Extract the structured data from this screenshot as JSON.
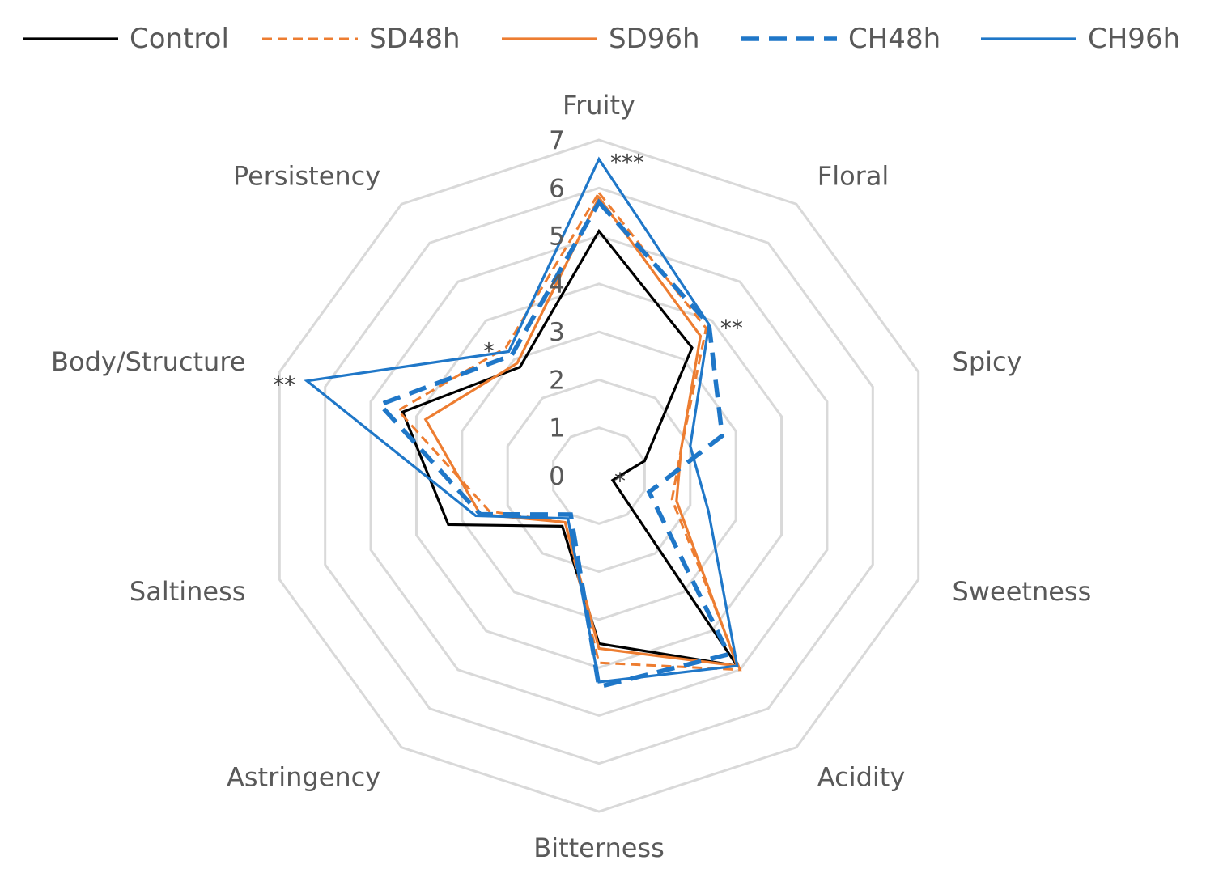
{
  "chart_data": {
    "type": "radar",
    "categories": [
      "Fruity",
      "Floral",
      "Spicy",
      "Sweetness",
      "Acidity",
      "Bitterness",
      "Astringency",
      "Saltiness",
      "Body/Structure",
      "Persistency"
    ],
    "significance": [
      "***",
      "**",
      "",
      "",
      "",
      "",
      "",
      "",
      "**",
      "*"
    ],
    "center_significance": "*",
    "r_ticks": [
      "0",
      "1",
      "2",
      "3",
      "4",
      "5",
      "6",
      "7"
    ],
    "rlim": [
      0,
      7
    ],
    "grid": true,
    "legend_position": "top",
    "series": [
      {
        "name": "Control",
        "color": "#000000",
        "dash": "solid",
        "values": [
          5.1,
          3.3,
          1.0,
          0.3,
          4.9,
          3.5,
          1.3,
          3.3,
          4.3,
          2.8
        ]
      },
      {
        "name": "SD48h",
        "color": "#ED7D31",
        "dash": "dotted",
        "values": [
          5.9,
          3.8,
          1.8,
          1.6,
          5.0,
          3.9,
          1.2,
          2.4,
          4.4,
          3.3
        ]
      },
      {
        "name": "SD96h",
        "color": "#ED7D31",
        "dash": "solid",
        "values": [
          5.8,
          3.6,
          1.8,
          1.7,
          4.9,
          3.6,
          1.2,
          2.6,
          3.8,
          2.9
        ]
      },
      {
        "name": "CH48h",
        "color": "#1F77C8",
        "dash": "dashed",
        "values": [
          5.7,
          3.9,
          2.7,
          1.1,
          4.6,
          4.4,
          1.0,
          2.6,
          4.8,
          3.1
        ]
      },
      {
        "name": "CH96h",
        "color": "#1F77C8",
        "dash": "solid",
        "values": [
          6.6,
          3.9,
          2.0,
          2.4,
          4.9,
          4.3,
          1.1,
          2.7,
          6.4,
          3.2
        ]
      }
    ]
  }
}
